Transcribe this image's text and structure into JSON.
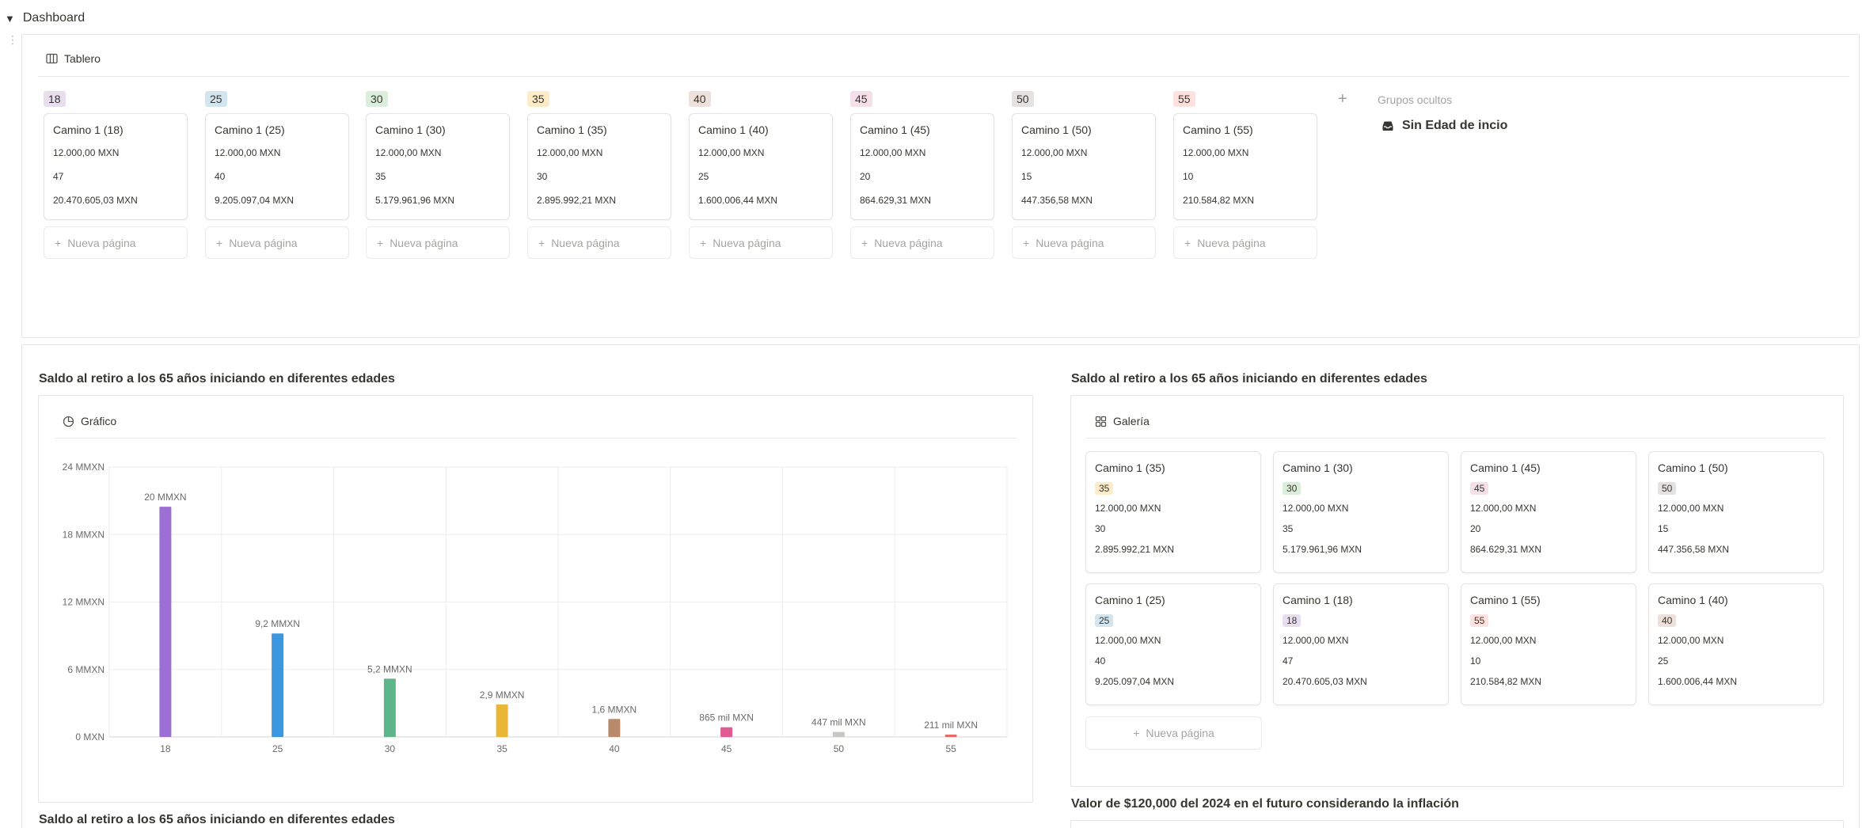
{
  "page": {
    "toggle_label": "Dashboard"
  },
  "board": {
    "view_label": "Tablero",
    "hidden_groups_label": "Grupos ocultos",
    "no_group_label": "Sin Edad de incio",
    "new_page_label": "Nueva página",
    "columns": [
      {
        "tag": "18",
        "tag_color": "#e8deee",
        "title": "Camino 1 (18)",
        "amount": "12.000,00 MXN",
        "years": "47",
        "balance": "20.470.605,03 MXN"
      },
      {
        "tag": "25",
        "tag_color": "#d3e5ef",
        "title": "Camino 1 (25)",
        "amount": "12.000,00 MXN",
        "years": "40",
        "balance": "9.205.097,04 MXN"
      },
      {
        "tag": "30",
        "tag_color": "#dbeddb",
        "title": "Camino 1 (30)",
        "amount": "12.000,00 MXN",
        "years": "35",
        "balance": "5.179.961,96 MXN"
      },
      {
        "tag": "35",
        "tag_color": "#fdecc8",
        "title": "Camino 1 (35)",
        "amount": "12.000,00 MXN",
        "years": "30",
        "balance": "2.895.992,21 MXN"
      },
      {
        "tag": "40",
        "tag_color": "#eee0da",
        "title": "Camino 1 (40)",
        "amount": "12.000,00 MXN",
        "years": "25",
        "balance": "1.600.006,44 MXN"
      },
      {
        "tag": "45",
        "tag_color": "#f5e0e9",
        "title": "Camino 1 (45)",
        "amount": "12.000,00 MXN",
        "years": "20",
        "balance": "864.629,31 MXN"
      },
      {
        "tag": "50",
        "tag_color": "#e3e2e0",
        "title": "Camino 1 (50)",
        "amount": "12.000,00 MXN",
        "years": "15",
        "balance": "447.356,58 MXN"
      },
      {
        "tag": "55",
        "tag_color": "#ffe2dd",
        "title": "Camino 1 (55)",
        "amount": "12.000,00 MXN",
        "years": "10",
        "balance": "210.584,82 MXN"
      }
    ]
  },
  "sections": {
    "chart_title": "Saldo al retiro a los 65 años iniciando en diferentes edades",
    "gallery_title": "Saldo al retiro a los 65 años iniciando en diferentes edades",
    "bottom_left_title": "Saldo al retiro a los 65 años iniciando en diferentes edades",
    "inflation_title": "Valor de $120,000 del 2024 en el futuro considerando la inflación"
  },
  "chart_view_label": "Gráfico",
  "chart_data": {
    "type": "bar",
    "categories": [
      "18",
      "25",
      "30",
      "35",
      "40",
      "45",
      "50",
      "55"
    ],
    "values": [
      20470605.03,
      9205097.04,
      5179961.96,
      2895992.21,
      1600006.44,
      864629.31,
      447356.58,
      210584.82
    ],
    "data_labels": [
      "20 MMXN",
      "9,2 MMXN",
      "5,2 MMXN",
      "2,9 MMXN",
      "1,6 MMXN",
      "865 mil MXN",
      "447 mil MXN",
      "211 mil MXN"
    ],
    "colors": [
      "#9b6fd3",
      "#3b97e0",
      "#5fb58a",
      "#e9b637",
      "#b98a6a",
      "#e05a93",
      "#c8c7c4",
      "#e76a66"
    ],
    "yticks": [
      0,
      6000000,
      12000000,
      18000000,
      24000000
    ],
    "ytick_labels": [
      "0 MXN",
      "6 MMXN",
      "12 MMXN",
      "18 MMXN",
      "24 MMXN"
    ],
    "ylim": [
      0,
      24000000
    ],
    "grid": true
  },
  "gallery": {
    "view_label": "Galería",
    "new_page_label": "Nueva página",
    "cards": [
      {
        "title": "Camino 1 (35)",
        "tag": "35",
        "tag_color": "#fdecc8",
        "amount": "12.000,00 MXN",
        "years": "30",
        "balance": "2.895.992,21 MXN"
      },
      {
        "title": "Camino 1 (30)",
        "tag": "30",
        "tag_color": "#dbeddb",
        "amount": "12.000,00 MXN",
        "years": "35",
        "balance": "5.179.961,96 MXN"
      },
      {
        "title": "Camino 1 (45)",
        "tag": "45",
        "tag_color": "#f5e0e9",
        "amount": "12.000,00 MXN",
        "years": "20",
        "balance": "864.629,31 MXN"
      },
      {
        "title": "Camino 1 (50)",
        "tag": "50",
        "tag_color": "#e3e2e0",
        "amount": "12.000,00 MXN",
        "years": "15",
        "balance": "447.356,58 MXN"
      },
      {
        "title": "Camino 1 (25)",
        "tag": "25",
        "tag_color": "#d3e5ef",
        "amount": "12.000,00 MXN",
        "years": "40",
        "balance": "9.205.097,04 MXN"
      },
      {
        "title": "Camino 1 (18)",
        "tag": "18",
        "tag_color": "#e8deee",
        "amount": "12.000,00 MXN",
        "years": "47",
        "balance": "20.470.605,03 MXN"
      },
      {
        "title": "Camino 1 (55)",
        "tag": "55",
        "tag_color": "#ffe2dd",
        "amount": "12.000,00 MXN",
        "years": "10",
        "balance": "210.584,82 MXN"
      },
      {
        "title": "Camino 1 (40)",
        "tag": "40",
        "tag_color": "#eee0da",
        "amount": "12.000,00 MXN",
        "years": "25",
        "balance": "1.600.006,44 MXN"
      }
    ]
  },
  "icons": {
    "board": "board-icon",
    "chart": "pie-chart-icon",
    "gallery": "gallery-icon",
    "inbox": "inbox-icon",
    "plus": "plus-icon",
    "toggle": "triangle-down-icon",
    "drag": "drag-handle-icon"
  }
}
